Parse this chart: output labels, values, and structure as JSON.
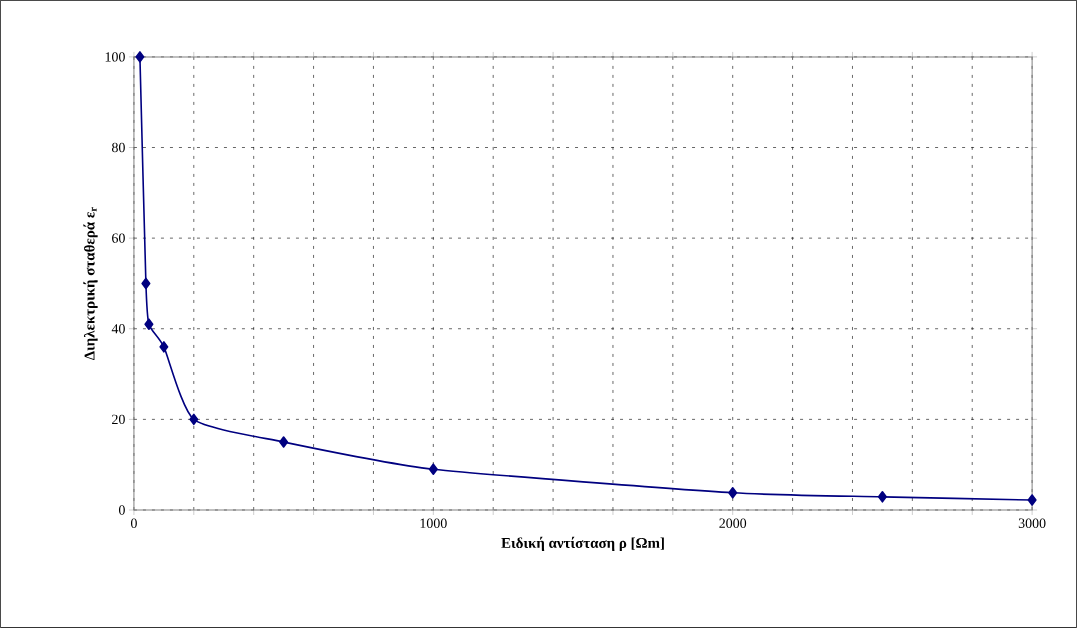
{
  "chart_data": {
    "type": "line",
    "xlabel": "Ειδική αντίσταση ρ [Ωm]",
    "ylabel": "Διηλεκτρική σταθερά ε$_{r}$",
    "x": [
      20,
      40,
      50,
      100,
      200,
      500,
      1000,
      2000,
      2500,
      3000
    ],
    "series": [
      {
        "color": "#000080",
        "values": [
          100,
          50,
          41,
          36,
          20,
          15,
          9,
          3.8,
          2.9,
          2.2
        ]
      }
    ],
    "xlim": [
      0,
      3000
    ],
    "ylim": [
      0,
      100
    ],
    "xticks": [
      0,
      {
        "value": 200,
        "label": null
      },
      {
        "value": 400,
        "label": null
      },
      {
        "value": 600,
        "label": null
      },
      {
        "value": 800,
        "label": null
      },
      1000,
      {
        "value": 1200,
        "label": null
      },
      {
        "value": 1400,
        "label": null
      },
      {
        "value": 1600,
        "label": null
      },
      {
        "value": 1800,
        "label": null
      },
      2000,
      {
        "value": 2200,
        "label": null
      },
      {
        "value": 2400,
        "label": null
      },
      {
        "value": 2600,
        "label": null
      },
      {
        "value": 2800,
        "label": null
      },
      3000
    ],
    "yticks": [
      0,
      20,
      40,
      60,
      80,
      100
    ],
    "grid": true,
    "marker": "diamond",
    "line_style": "solid"
  }
}
